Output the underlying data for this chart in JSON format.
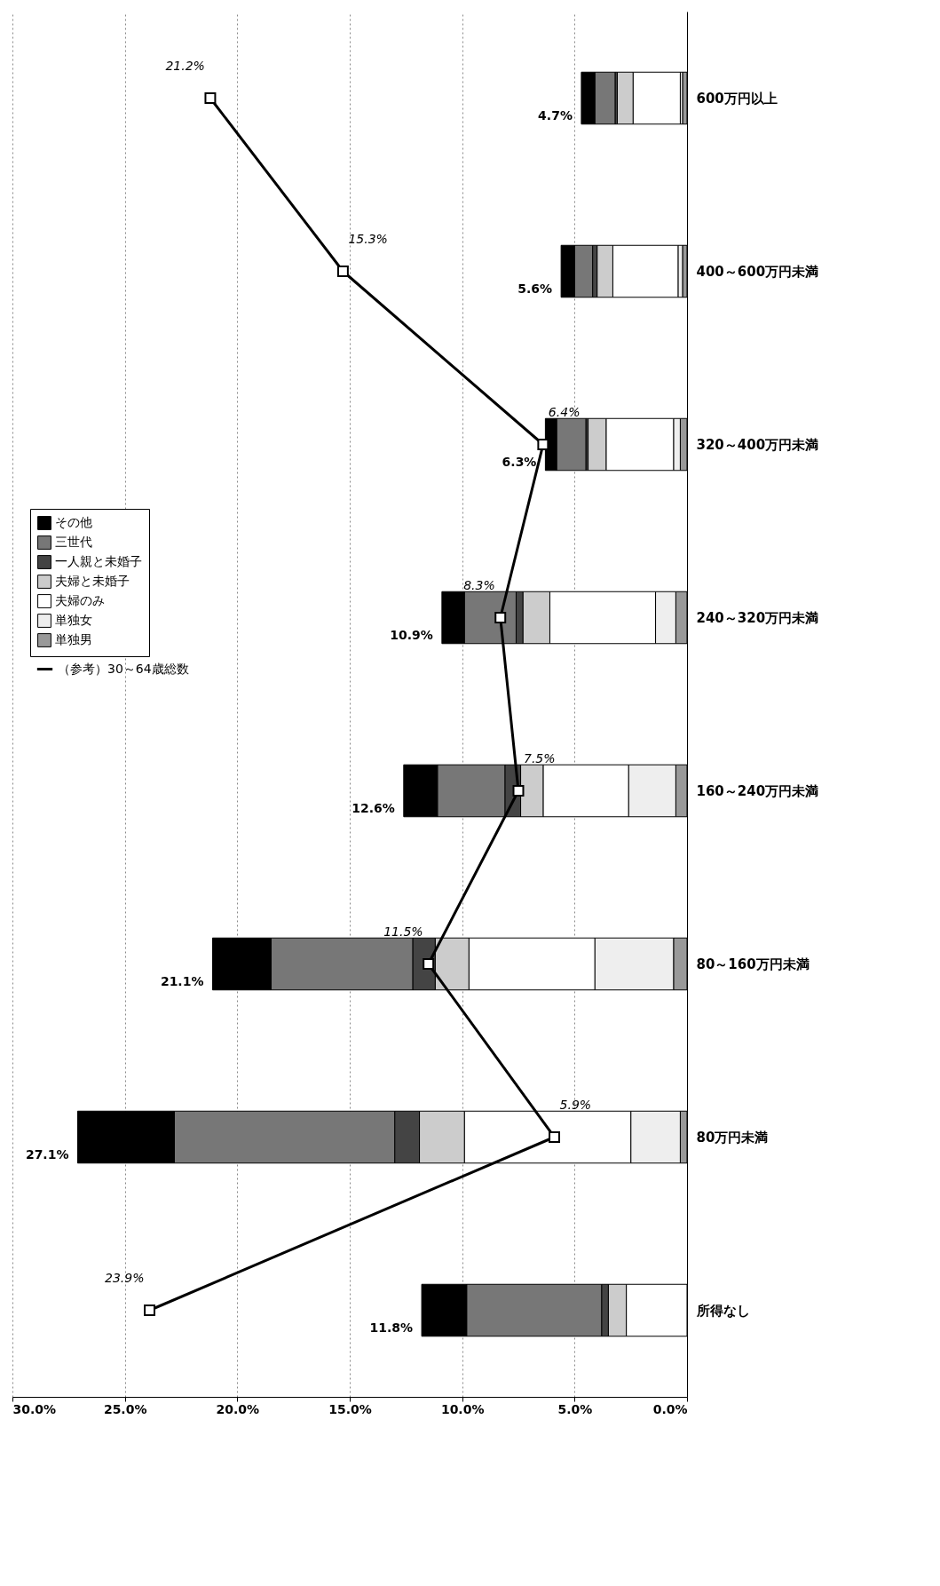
{
  "chart_data": {
    "type": "bar",
    "orientation": "horizontal",
    "stacked": true,
    "categories": [
      "600万円以上",
      "400～600万円未満",
      "320～400万円未満",
      "240～320万円未満",
      "160～240万円未満",
      "80～160万円未満",
      "80万円未満",
      "所得なし"
    ],
    "xlim": [
      30,
      0
    ],
    "xticks": [
      {
        "value": 30,
        "label": "30.0%"
      },
      {
        "value": 25,
        "label": "25.0%"
      },
      {
        "value": 20,
        "label": "20.0%"
      },
      {
        "value": 15,
        "label": "15.0%"
      },
      {
        "value": 10,
        "label": "10.0%"
      },
      {
        "value": 5,
        "label": "5.0%"
      },
      {
        "value": 0,
        "label": "0.0%"
      }
    ],
    "grid": "x",
    "legend": "left",
    "marker": "square",
    "series": [
      {
        "name": "単独男",
        "color": "#999999",
        "values": [
          0.2,
          0.2,
          0.3,
          0.5,
          0.5,
          0.6,
          0.3,
          0
        ]
      },
      {
        "name": "単独女",
        "color": "#eeeeee",
        "values": [
          0.1,
          0.2,
          0.3,
          0.9,
          2.1,
          3.5,
          2.2,
          0
        ]
      },
      {
        "name": "夫婦のみ",
        "color": "#ffffff",
        "values": [
          2.1,
          2.9,
          3.0,
          4.7,
          3.8,
          5.6,
          7.4,
          2.7
        ]
      },
      {
        "name": "夫婦と未婚子",
        "color": "#cccccc",
        "values": [
          0.7,
          0.7,
          0.8,
          1.2,
          1.0,
          1.5,
          2.0,
          0.8
        ]
      },
      {
        "name": "一人親と未婚子",
        "color": "#444444",
        "values": [
          0.1,
          0.2,
          0.1,
          0.3,
          0.7,
          1.0,
          1.1,
          0.3
        ]
      },
      {
        "name": "三世代",
        "color": "#777777",
        "values": [
          0.9,
          0.8,
          1.3,
          2.3,
          3.0,
          6.3,
          9.8,
          6.0
        ]
      },
      {
        "name": "その他",
        "color": "#000000",
        "values": [
          0.6,
          0.6,
          0.5,
          1.0,
          1.5,
          2.6,
          4.3,
          2.0
        ]
      },
      {
        "name": "（参考）30～64歳総数",
        "type": "line",
        "color": "#000000",
        "values": [
          21.2,
          15.3,
          6.4,
          8.3,
          7.5,
          11.5,
          5.9,
          23.9
        ],
        "value_labels": [
          "21.2%",
          "15.3%",
          "6.4%",
          "8.3%",
          "7.5%",
          "11.5%",
          "5.9%",
          "23.9%"
        ]
      }
    ],
    "totals": [
      "4.7%",
      "5.6%",
      "6.3%",
      "10.9%",
      "12.6%",
      "21.1%",
      "27.1%",
      "11.8%"
    ]
  }
}
